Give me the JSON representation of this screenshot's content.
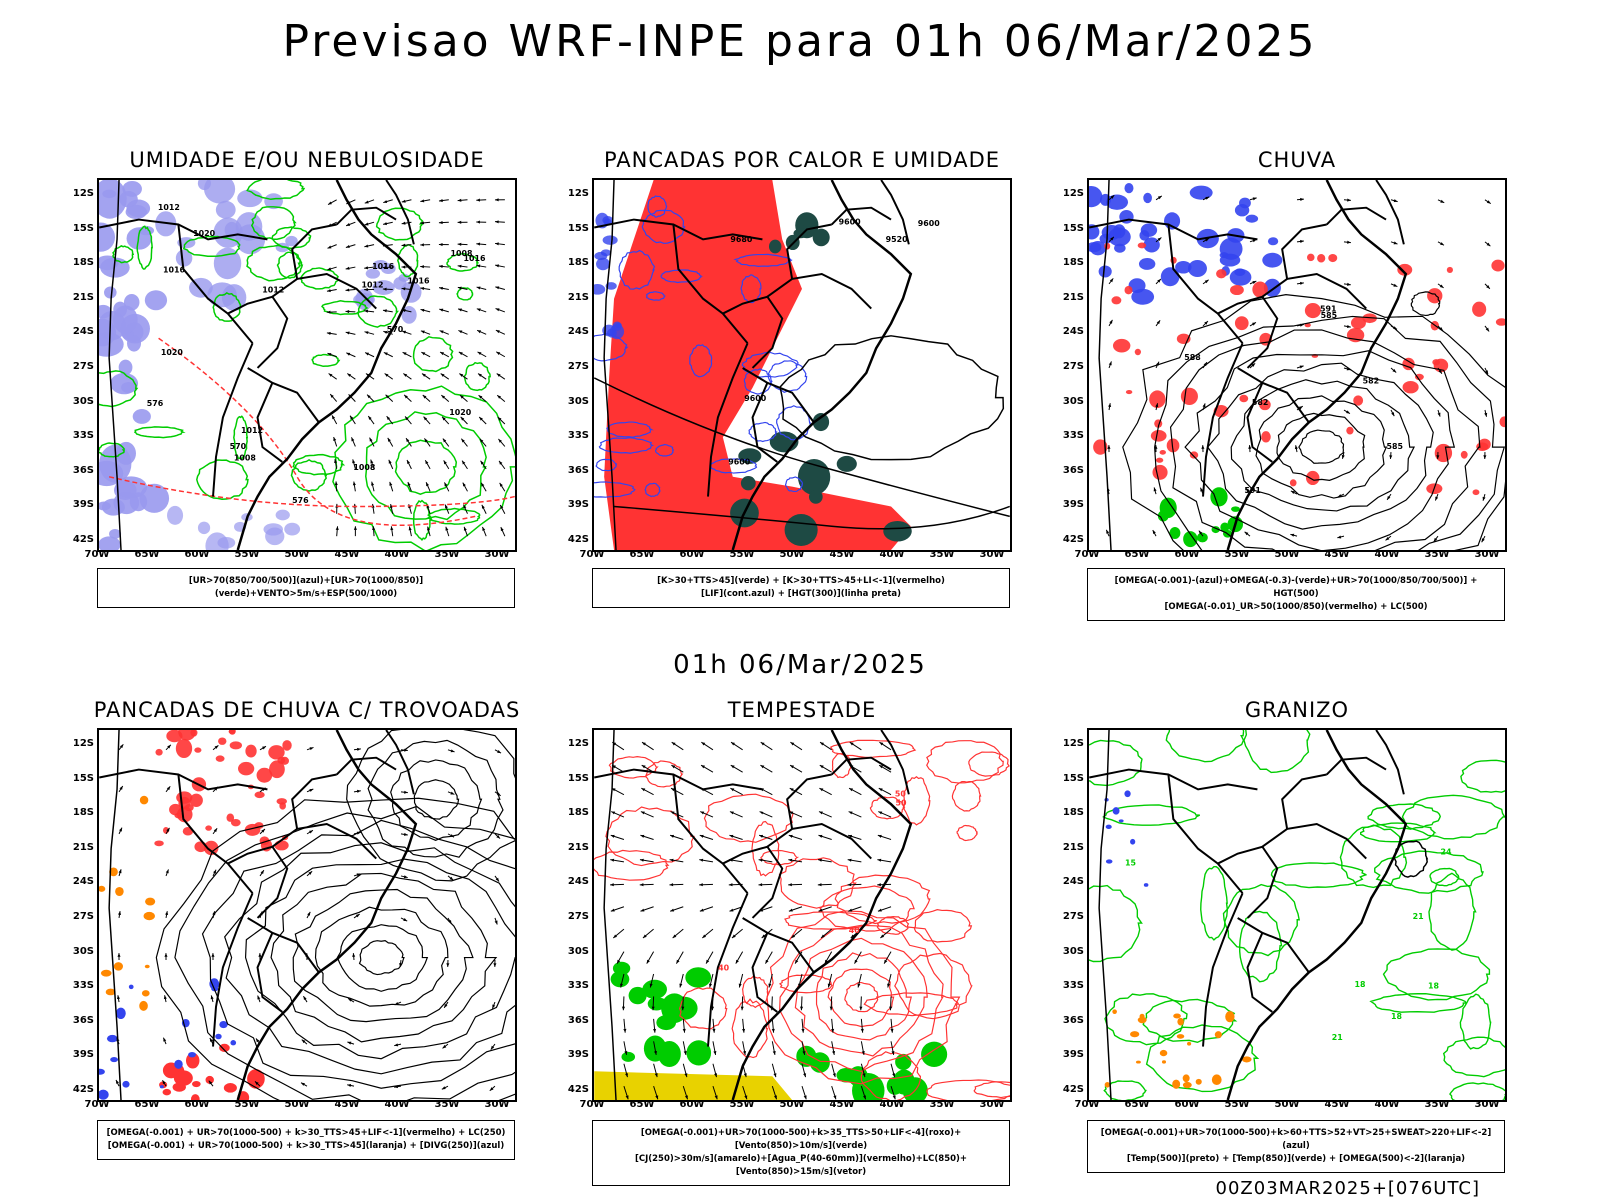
{
  "title": "Previsao WRF-INPE  para 01h 06/Mar/2025",
  "mid_label": "01h 06/Mar/2025",
  "footer": "00Z03MAR2025+[076UTC]",
  "lat_ticks": [
    "12S",
    "15S",
    "18S",
    "21S",
    "24S",
    "27S",
    "30S",
    "33S",
    "36S",
    "39S",
    "42S"
  ],
  "lon_ticks": [
    "70W",
    "65W",
    "60W",
    "55W",
    "50W",
    "45W",
    "40W",
    "35W",
    "30W"
  ],
  "colors": {
    "blue_fill": "#9999ee",
    "green": "#00cc00",
    "red": "#ff3333",
    "dark_teal": "#1e4a44",
    "blue": "#3344ee",
    "orange": "#ff8800",
    "yellow": "#e8d200"
  },
  "panels": [
    {
      "title": "UMIDADE E/OU NEBULOSIDADE",
      "legend": [
        "[UR>70(850/700/500)](azul)+[UR>70(1000/850)](verde)+VENTO>5m/s+ESP(500/1000)"
      ],
      "labels": [
        "1012",
        "1012",
        "1012",
        "1016",
        "1016",
        "1016",
        "1020",
        "1020",
        "1020",
        "1008",
        "1008",
        "1008",
        "576",
        "576",
        "570",
        "570",
        "1016",
        "1012"
      ]
    },
    {
      "title": "PANCADAS POR CALOR E UMIDADE",
      "legend": [
        "[K>30+TTS>45](verde) + [K>30+TTS>45+LI<-1](vermelho)",
        "[LIF](cont.azul) + [HGT(300)](linha preta)"
      ],
      "labels": [
        "9600",
        "9600",
        "9600",
        "9680",
        "9520",
        "9600"
      ]
    },
    {
      "title": "CHUVA",
      "legend": [
        "[OMEGA(-0.001)-(azul)+OMEGA(-0.3)-(verde)+UR>70(1000/850/700/500)] + HGT(500)",
        "[OMEGA(-0.01)_UR>50(1000/850)(vermelho) + LC(500)"
      ],
      "labels": [
        "585",
        "588",
        "591",
        "591",
        "582",
        "585",
        "582"
      ]
    },
    {
      "title": "PANCADAS DE CHUVA C/ TROVOADAS",
      "legend": [
        "[OMEGA(-0.001) + UR>70(1000-500) + k>30_TTS>45+LIF<-1](vermelho) + LC(250)",
        "[OMEGA(-0.001) + UR>70(1000-500) + k>30_TTS>45](laranja) + [DIVG(250)](azul)"
      ],
      "labels": []
    },
    {
      "title": "TEMPESTADE",
      "legend": [
        "[OMEGA(-0.001)+UR>70(1000-500)+k>35_TTS>50+LIF<-4](roxo)+[Vento(850)>10m/s](verde)",
        "[CJ(250)>30m/s](amarelo)+[Agua_P(40-60mm)](vermelho)+LC(850)+[Vento(850)>15m/s](vetor)"
      ],
      "labels": [
        "50",
        "40",
        "40",
        "50"
      ]
    },
    {
      "title": "GRANIZO",
      "legend": [
        "[OMEGA(-0.001)+UR>70(1000-500)+k>60+TTS>52+VT>25+SWEAT>220+LIF<-2](azul)",
        "[Temp(500)](preto) + [Temp(850)](verde) + [OMEGA(500)<-2](laranja)"
      ],
      "labels": [
        "18",
        "18",
        "15",
        "21",
        "24",
        "21",
        "18"
      ]
    }
  ]
}
